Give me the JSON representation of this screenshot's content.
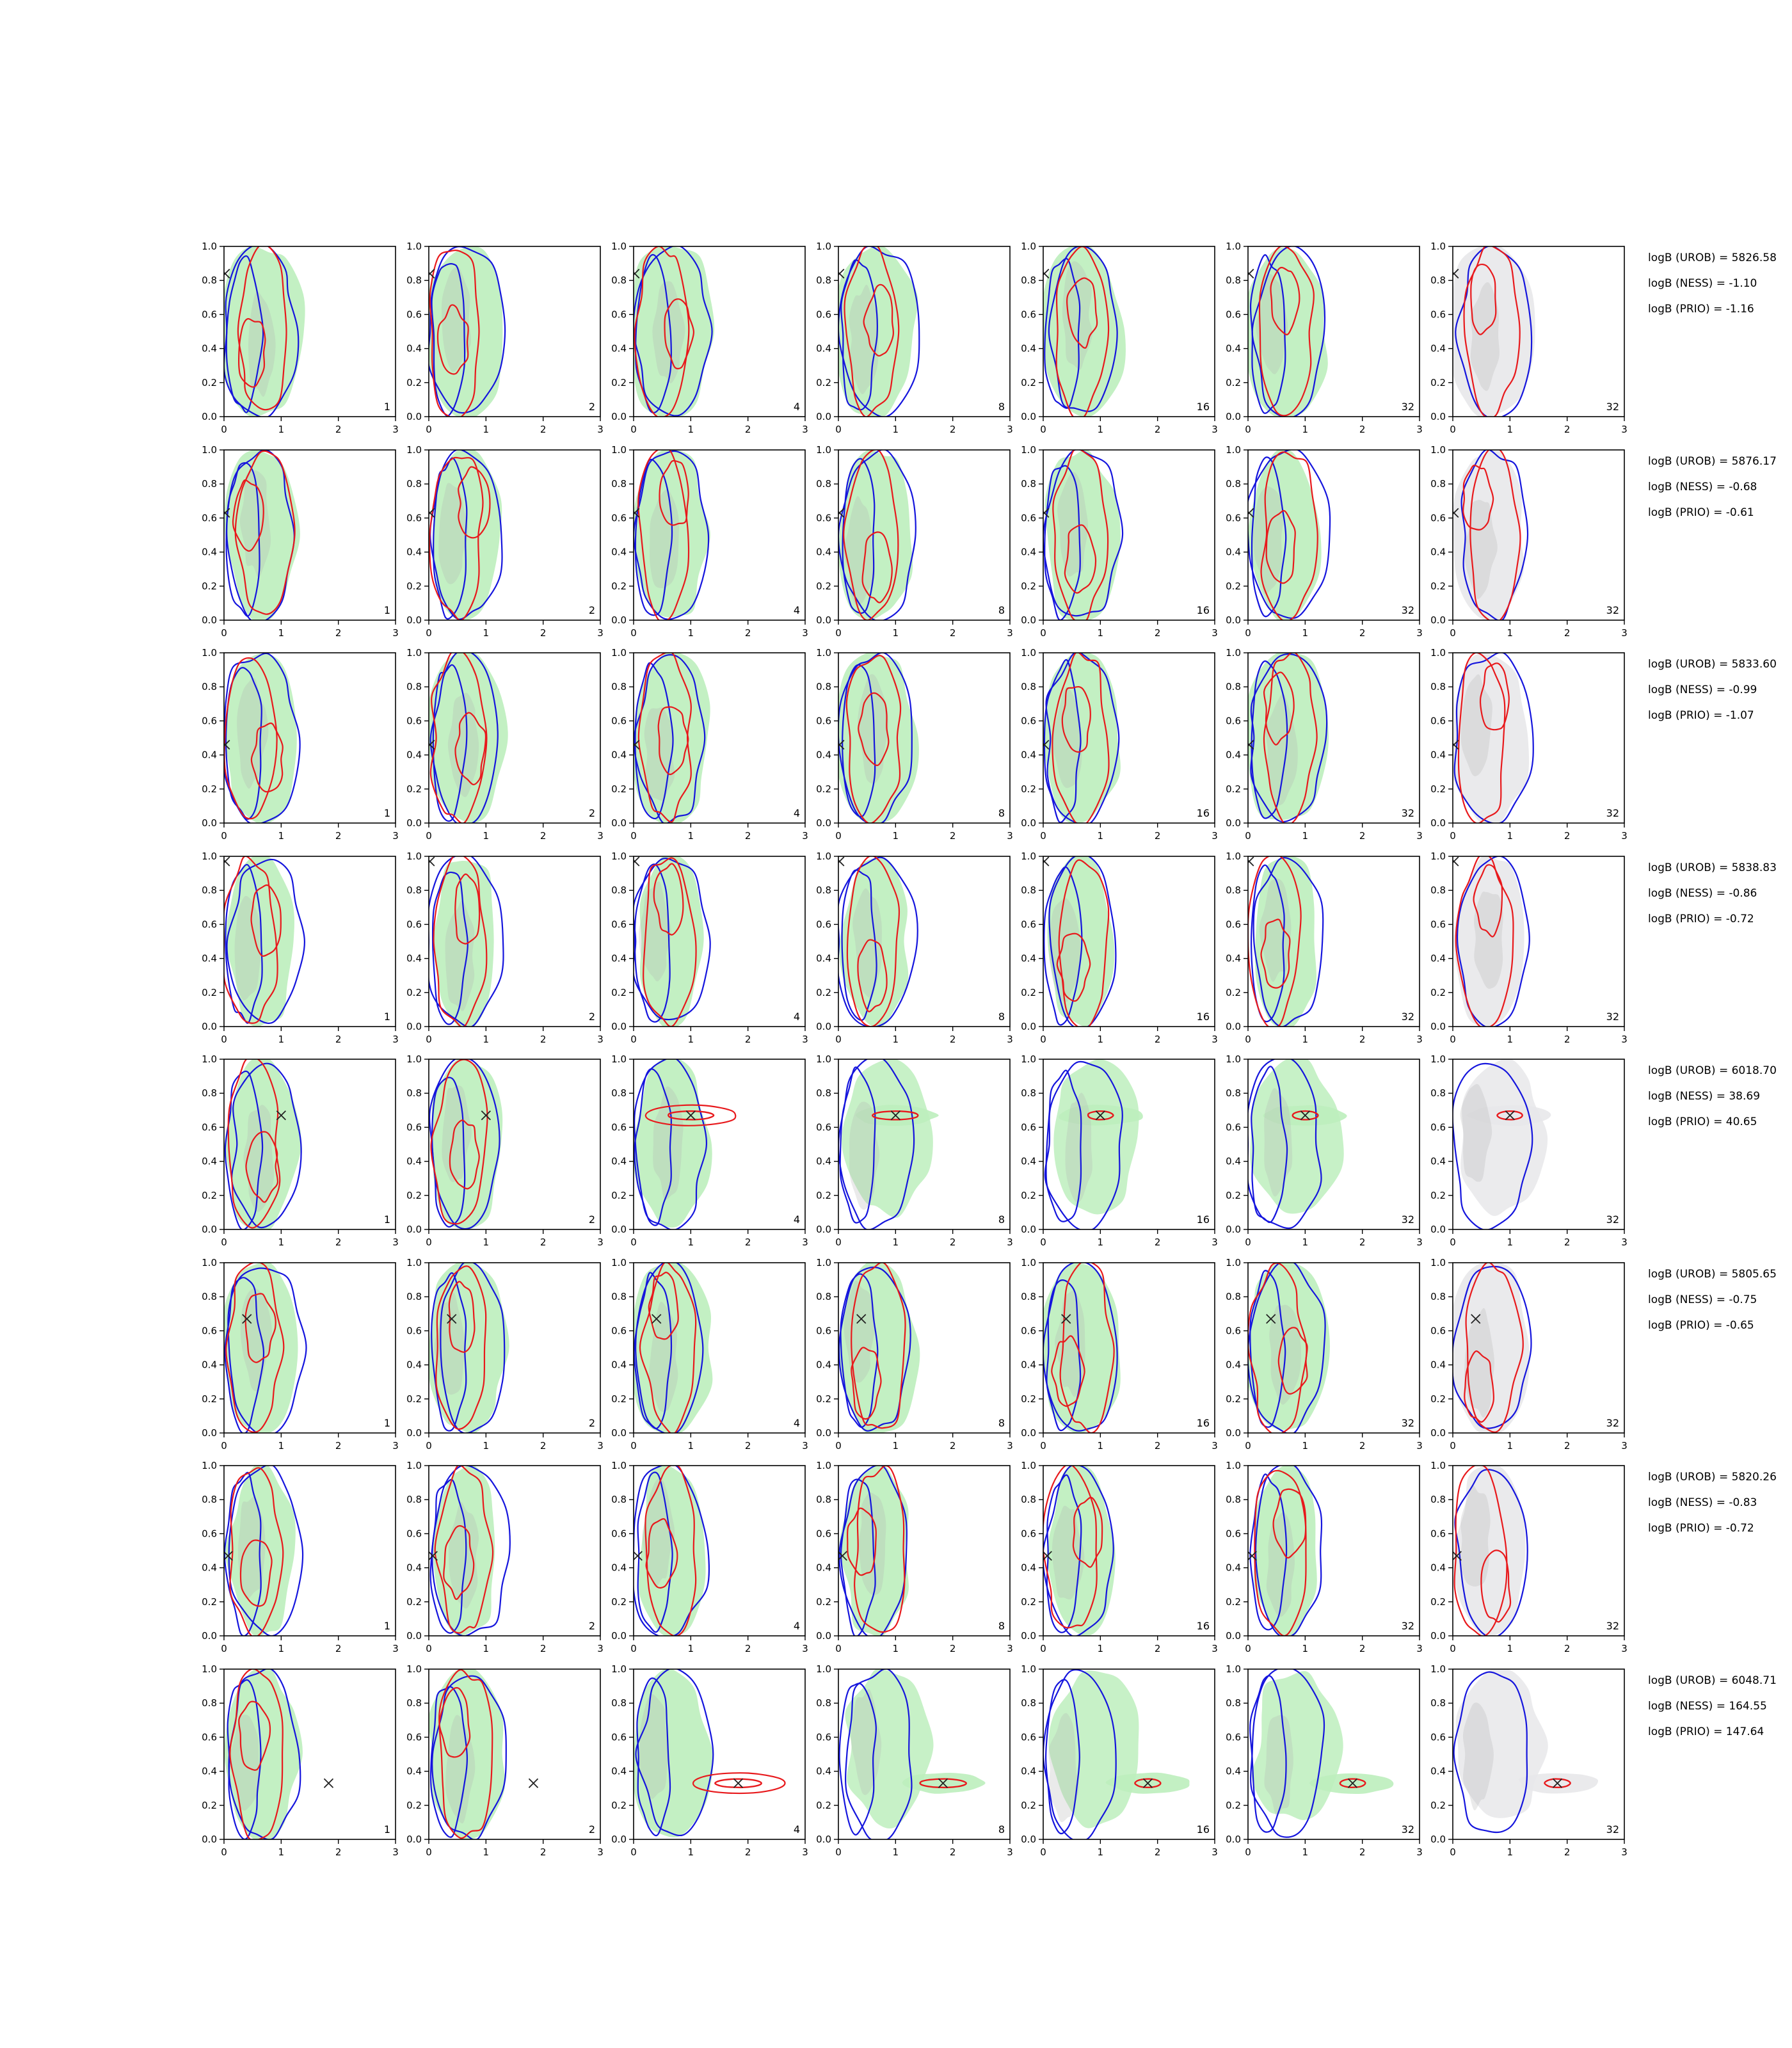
{
  "chart_data": {
    "type": "contour-grid",
    "x_ticks": [
      "0",
      "1",
      "2",
      "3"
    ],
    "y_ticks": [
      "0.0",
      "0.2",
      "0.4",
      "0.6",
      "0.8",
      "1.0"
    ],
    "xlim": [
      0,
      3
    ],
    "ylim": [
      0,
      1
    ],
    "column_labels": [
      "1",
      "2",
      "4",
      "8",
      "16",
      "32",
      "32"
    ],
    "colors": {
      "red_contour": "#e8191c",
      "blue_contour": "#1515dd",
      "green_fill": "#bdeebd",
      "grey_fill": "#b5b5b5",
      "light_grey_fill": "#e8e8ea",
      "marker": "#222222"
    },
    "rows": [
      {
        "marker": [
          0.02,
          0.84
        ],
        "logB": [
          "logB (UROB) = 5826.58",
          "logB (NESS) = -1.10",
          "logB (PRIO) = -1.16"
        ]
      },
      {
        "marker": [
          0.02,
          0.63
        ],
        "logB": [
          "logB (UROB) = 5876.17",
          "logB (NESS) = -0.68",
          "logB (PRIO) = -0.61"
        ]
      },
      {
        "marker": [
          0.02,
          0.46
        ],
        "logB": [
          "logB (UROB) = 5833.60",
          "logB (NESS) = -0.99",
          "logB (PRIO) = -1.07"
        ]
      },
      {
        "marker": [
          0.02,
          0.97
        ],
        "logB": [
          "logB (UROB) = 5838.83",
          "logB (NESS) = -0.86",
          "logB (PRIO) = -0.72"
        ]
      },
      {
        "marker": [
          1.0,
          0.67
        ],
        "logB": [
          "logB (UROB) = 6018.70",
          "logB (NESS) = 38.69",
          "logB (PRIO) = 40.65"
        ]
      },
      {
        "marker": [
          0.4,
          0.67
        ],
        "logB": [
          "logB (UROB) = 5805.65",
          "logB (NESS) = -0.75",
          "logB (PRIO) = -0.65"
        ]
      },
      {
        "marker": [
          0.07,
          0.47
        ],
        "logB": [
          "logB (UROB) = 5820.26",
          "logB (NESS) = -0.83",
          "logB (PRIO) = -0.72"
        ]
      },
      {
        "marker": [
          1.83,
          0.33
        ],
        "logB": [
          "logB (UROB) = 6048.71",
          "logB (NESS) = 164.55",
          "logB (PRIO) = 147.64"
        ]
      }
    ]
  }
}
